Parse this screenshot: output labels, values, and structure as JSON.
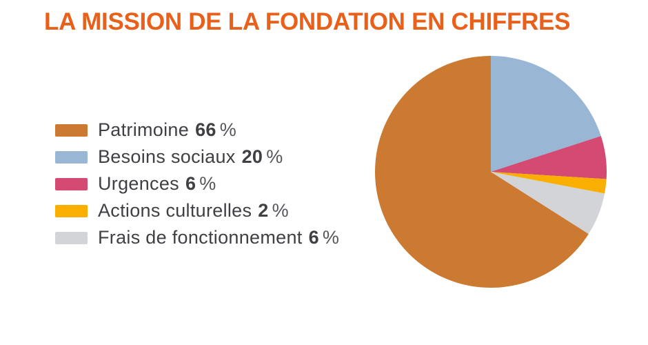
{
  "chart_data": {
    "type": "pie",
    "title": "LA MISSION DE LA FONDATION EN CHIFFRES",
    "title_color": "#E9601B",
    "text_color": "#3F4043",
    "background_color": "#FFFFFF",
    "legend_position": "left",
    "start_angle_deg": 122.4,
    "direction": "clockwise",
    "percent_sign": "%",
    "slices": [
      {
        "label": "Patrimoine",
        "value": 66,
        "color": "#CC7A32"
      },
      {
        "label": "Besoins sociaux",
        "value": 20,
        "color": "#99B6D5"
      },
      {
        "label": "Urgences",
        "value": 6,
        "color": "#D44A72"
      },
      {
        "label": "Actions culturelles",
        "value": 2,
        "color": "#F9AE00"
      },
      {
        "label": "Frais de fonctionnement",
        "value": 6,
        "color": "#D2D4D7"
      }
    ]
  }
}
